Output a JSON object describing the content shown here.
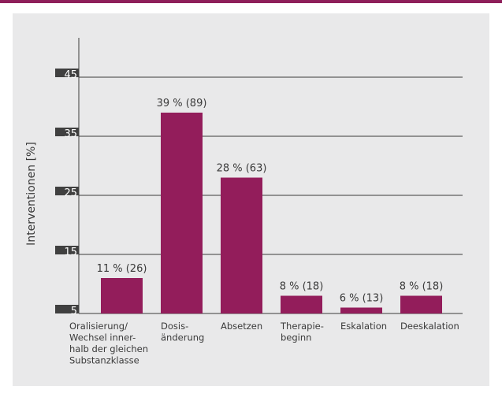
{
  "colors": {
    "accent": "#8e1f5a",
    "bar": "#931d5b",
    "panel": "#e9e9ea",
    "tick_box": "#404040",
    "text": "#3a3a3a"
  },
  "chart_data": {
    "type": "bar",
    "title": "",
    "xlabel": "",
    "ylabel": "Interventionen [%]",
    "ylim": [
      5,
      48
    ],
    "yticks": [
      5,
      15,
      25,
      35,
      45
    ],
    "grid": true,
    "categories": [
      [
        "Oralisierung/",
        "Wechsel inner-",
        "halb der gleichen",
        "Substanzklasse"
      ],
      [
        "Dosis-",
        "änderung"
      ],
      [
        "Absetzen"
      ],
      [
        "Therapie-",
        "beginn"
      ],
      [
        "Eskalation"
      ],
      [
        "Deeskalation"
      ]
    ],
    "values": [
      11,
      39,
      28,
      8,
      6,
      8
    ],
    "data_labels": [
      "11 % (26)",
      "39 % (89)",
      "28 % (63)",
      "8 % (18)",
      "6 % (13)",
      "8 % (18)"
    ]
  }
}
